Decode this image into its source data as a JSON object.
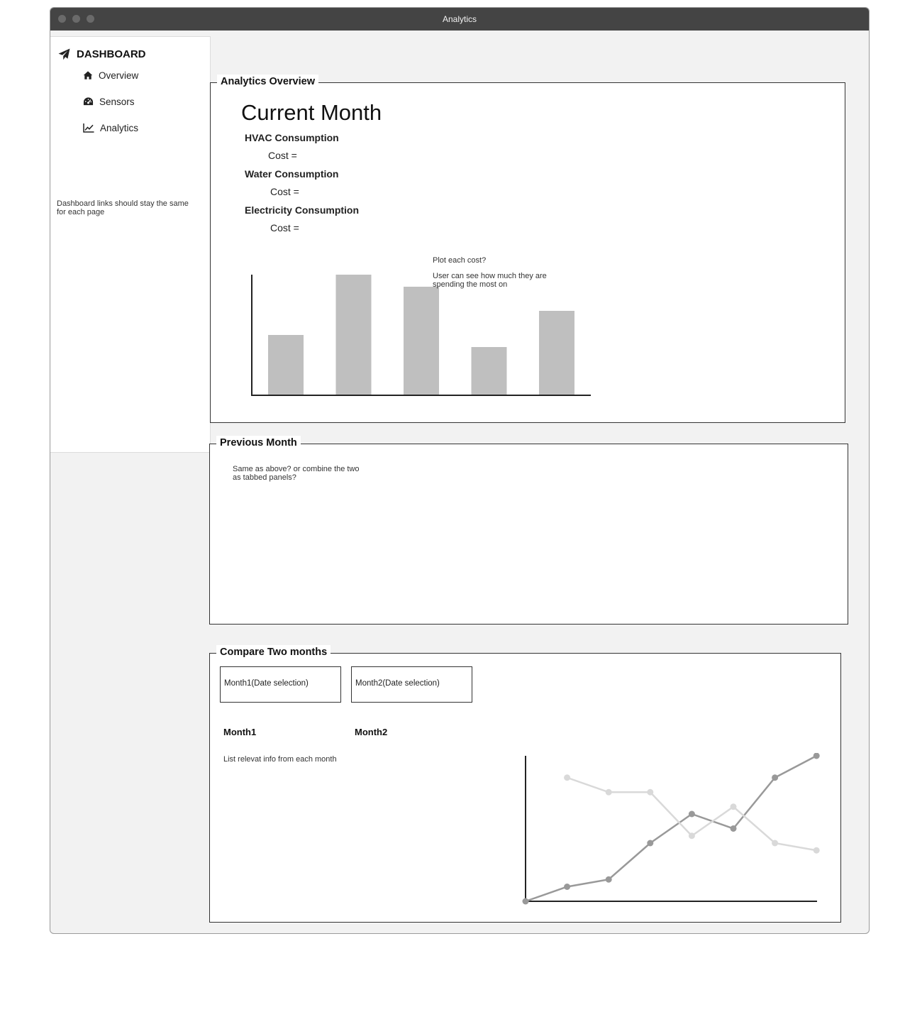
{
  "window": {
    "title": "Analytics"
  },
  "sidebar": {
    "brand": {
      "label": "DASHBOARD",
      "icon": "paper-plane-icon"
    },
    "items": [
      {
        "label": "Overview",
        "icon": "home-icon"
      },
      {
        "label": "Sensors",
        "icon": "dashboard-gauge-icon"
      },
      {
        "label": "Analytics",
        "icon": "line-chart-icon"
      }
    ],
    "note": "Dashboard links should stay the same for each page"
  },
  "analytics_overview": {
    "legend": "Analytics Overview",
    "title": "Current Month",
    "sections": [
      {
        "heading": "HVAC  Consumption",
        "cost_label": "Cost  ="
      },
      {
        "heading": "Water  Consumption",
        "cost_label": "Cost ="
      },
      {
        "heading": "Electricity Consumption",
        "cost_label": "Cost ="
      }
    ],
    "chart_note_1": "Plot each cost?",
    "chart_note_2": "User can see how much they are spending the most on"
  },
  "previous_month": {
    "legend": "Previous Month",
    "note": "Same as above?  or combine the two as tabbed panels?"
  },
  "compare": {
    "legend": "Compare Two months",
    "month1_select": "Month1(Date selection)",
    "month2_select": "Month2(Date selection)",
    "month1_label": "Month1",
    "month2_label": "Month2",
    "note": "List relevat info from each month"
  },
  "colors": {
    "titlebar": "#444444",
    "bar": "#bfbfbf",
    "series_dark": "#999999",
    "series_light": "#d9d9d9"
  },
  "chart_data": [
    {
      "type": "bar",
      "categories": [
        "1",
        "2",
        "3",
        "4",
        "5"
      ],
      "values": [
        50,
        100,
        90,
        40,
        70
      ],
      "ylim": [
        0,
        100
      ],
      "title": "",
      "xlabel": "",
      "ylabel": "",
      "grid": false
    },
    {
      "type": "line",
      "x": [
        0,
        1,
        2,
        3,
        4,
        5,
        6,
        7
      ],
      "series": [
        {
          "values": [
            0,
            1,
            1.5,
            4,
            6,
            5,
            8.5,
            10
          ],
          "color": "#999999"
        },
        {
          "values": [
            null,
            8.5,
            7.5,
            7.5,
            4.5,
            6.5,
            4,
            3.5
          ],
          "color": "#d9d9d9"
        }
      ],
      "ylim": [
        0,
        10
      ],
      "title": "",
      "xlabel": "",
      "ylabel": "",
      "grid": false
    }
  ]
}
